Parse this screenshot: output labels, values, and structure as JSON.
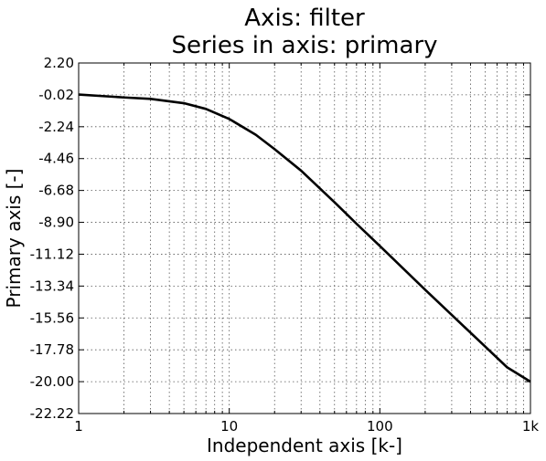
{
  "chart_data": {
    "type": "line",
    "title_lines": [
      "Axis: filter",
      "Series in axis: primary"
    ],
    "xlabel": "Independent axis [k-]",
    "ylabel": "Primary axis [-]",
    "xscale": "log",
    "xlim": [
      1,
      1000
    ],
    "ylim": [
      -22.22,
      2.2
    ],
    "grid": true,
    "xticks": [
      {
        "value": 1,
        "label": "1"
      },
      {
        "value": 10,
        "label": "10"
      },
      {
        "value": 100,
        "label": "100"
      },
      {
        "value": 1000,
        "label": "1k"
      }
    ],
    "yticks": [
      {
        "value": 2.2,
        "label": "2.20"
      },
      {
        "value": -0.02,
        "label": "-0.02"
      },
      {
        "value": -2.24,
        "label": "-2.24"
      },
      {
        "value": -4.46,
        "label": "-4.46"
      },
      {
        "value": -6.68,
        "label": "-6.68"
      },
      {
        "value": -8.9,
        "label": "-8.90"
      },
      {
        "value": -11.12,
        "label": "-11.12"
      },
      {
        "value": -13.34,
        "label": "-13.34"
      },
      {
        "value": -15.56,
        "label": "-15.56"
      },
      {
        "value": -17.78,
        "label": "-17.78"
      },
      {
        "value": -20.0,
        "label": "-20.00"
      },
      {
        "value": -22.22,
        "label": "-22.22"
      }
    ],
    "series": [
      {
        "color": "#000000",
        "x": [
          1,
          2,
          3,
          5,
          7,
          10,
          15,
          20,
          30,
          50,
          70,
          100,
          200,
          300,
          500,
          700,
          1000
        ],
        "y": [
          0.0,
          -0.2,
          -0.3,
          -0.6,
          -1.0,
          -1.7,
          -2.8,
          -3.8,
          -5.3,
          -7.5,
          -9.0,
          -10.55,
          -13.6,
          -15.35,
          -17.55,
          -19.0,
          -20.0
        ]
      }
    ]
  }
}
